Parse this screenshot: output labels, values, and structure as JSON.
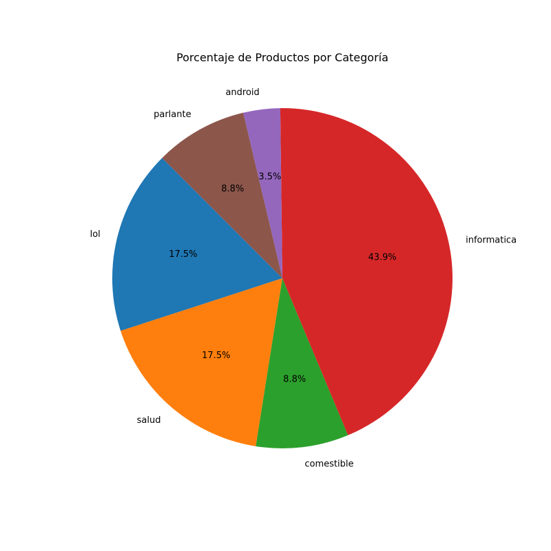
{
  "chart_data": {
    "type": "pie",
    "title": "Porcentaje de Productos por Categoría",
    "start_angle_deg": 135,
    "direction": "counterclockwise",
    "slices": [
      {
        "label": "lol",
        "value": 17.5,
        "pct_text": "17.5%",
        "color": "#1f77b4"
      },
      {
        "label": "salud",
        "value": 17.5,
        "pct_text": "17.5%",
        "color": "#ff7f0e"
      },
      {
        "label": "comestible",
        "value": 8.8,
        "pct_text": "8.8%",
        "color": "#2ca02c"
      },
      {
        "label": "informatica",
        "value": 43.9,
        "pct_text": "43.9%",
        "color": "#d62728"
      },
      {
        "label": "android",
        "value": 3.5,
        "pct_text": "3.5%",
        "color": "#9467bd"
      },
      {
        "label": "parlante",
        "value": 8.8,
        "pct_text": "8.8%",
        "color": "#8c564b"
      }
    ]
  }
}
